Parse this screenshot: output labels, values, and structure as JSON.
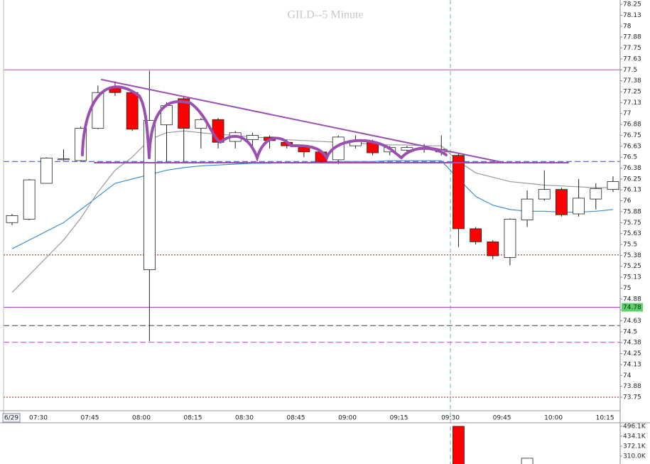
{
  "chart_data": {
    "type": "candlestick",
    "title": "GILD--5 Minute",
    "date_label": "6/29",
    "xtick_labels": [
      "07:30",
      "07:45",
      "08:00",
      "08:15",
      "08:30",
      "08:45",
      "09:00",
      "09:15",
      "09:30",
      "09:45",
      "10:00",
      "10:15"
    ],
    "open": [
      75.75,
      75.79,
      76.2,
      76.47,
      76.46,
      76.83,
      77.29,
      77.24,
      75.21,
      76.87,
      77.17,
      76.83,
      76.93,
      76.68,
      76.7,
      76.73,
      76.67,
      76.61,
      76.56,
      76.47,
      76.63,
      76.67,
      76.56,
      76.58,
      76.59,
      76.56,
      76.52,
      75.68,
      75.53,
      75.35,
      75.78,
      76.02,
      76.13,
      75.85,
      76.02,
      76.13
    ],
    "high": [
      75.85,
      76.25,
      76.5,
      76.59,
      76.85,
      77.32,
      77.37,
      77.26,
      77.49,
      77.13,
      77.19,
      76.95,
      76.95,
      76.8,
      76.78,
      76.75,
      76.7,
      76.63,
      76.58,
      76.75,
      76.75,
      76.7,
      76.63,
      76.63,
      76.65,
      76.75,
      76.55,
      75.7,
      75.55,
      75.8,
      76.12,
      76.35,
      76.15,
      76.25,
      76.2,
      76.28
    ],
    "low": [
      75.72,
      75.78,
      76.2,
      76.46,
      76.45,
      76.82,
      77.2,
      76.8,
      74.39,
      76.45,
      76.45,
      76.6,
      76.6,
      76.6,
      76.6,
      76.6,
      76.6,
      76.5,
      76.44,
      76.42,
      76.6,
      76.52,
      76.52,
      76.55,
      76.55,
      76.52,
      75.47,
      75.5,
      75.33,
      75.26,
      75.7,
      76.0,
      75.82,
      75.82,
      75.9,
      76.1
    ],
    "close": [
      75.83,
      76.24,
      76.49,
      76.48,
      76.83,
      77.24,
      77.24,
      76.82,
      76.92,
      77.09,
      76.83,
      76.93,
      76.67,
      76.78,
      76.75,
      76.69,
      76.63,
      76.56,
      76.45,
      76.73,
      76.69,
      76.55,
      76.61,
      76.61,
      76.61,
      76.59,
      75.68,
      75.53,
      75.37,
      75.79,
      76.02,
      76.13,
      75.84,
      76.03,
      76.14,
      76.22
    ],
    "up_color": "#ffffff",
    "down_color": "#ff0000",
    "series": [
      {
        "color": "#3a8fd8",
        "values": [
          75.45,
          75.55,
          75.65,
          75.75,
          75.9,
          76.05,
          76.2,
          76.25,
          76.3,
          76.35,
          76.38,
          76.4,
          76.41,
          76.42,
          76.43,
          76.43,
          76.44,
          76.44,
          76.44,
          76.45,
          76.45,
          76.45,
          76.46,
          76.46,
          76.46,
          76.46,
          76.25,
          76.05,
          75.95,
          75.9,
          75.88,
          75.88,
          75.87,
          75.87,
          75.88,
          75.9
        ]
      },
      {
        "color": "#999999",
        "values": [
          74.95,
          75.15,
          75.35,
          75.55,
          75.8,
          76.1,
          76.35,
          76.5,
          76.7,
          76.78,
          76.8,
          76.78,
          76.76,
          76.75,
          76.73,
          76.72,
          76.7,
          76.69,
          76.68,
          76.67,
          76.66,
          76.65,
          76.64,
          76.64,
          76.63,
          76.63,
          76.45,
          76.32,
          76.27,
          76.22,
          76.2,
          76.18,
          76.17,
          76.16,
          76.15,
          76.15
        ]
      }
    ],
    "levels": [
      {
        "value": 77.5,
        "color": "#c060c0",
        "style": "solid"
      },
      {
        "value": 76.45,
        "color": "#4060d0",
        "style": "dashed"
      },
      {
        "value": 75.38,
        "color": "#c04040",
        "style": "dotted"
      },
      {
        "value": 74.78,
        "color": "#b050c0",
        "style": "solid",
        "label": true
      },
      {
        "value": 74.57,
        "color": "#666666",
        "style": "dashed"
      },
      {
        "value": 74.38,
        "color": "#e060e0",
        "style": "dashed"
      },
      {
        "value": 73.75,
        "color": "#c04040",
        "style": "dotted"
      }
    ],
    "ylim": [
      73.62,
      78.3
    ],
    "yticks": [
      78.25,
      {
        "value": 78.125,
        "label": "78.13"
      },
      78,
      {
        "value": 77.875,
        "label": "77.88"
      },
      77.75,
      {
        "value": 77.625,
        "label": "77.63"
      },
      77.5,
      {
        "value": 77.375,
        "label": "77.38"
      },
      77.25,
      {
        "value": 77.125,
        "label": "77.13"
      },
      77,
      {
        "value": 76.875,
        "label": "76.88"
      },
      76.75,
      {
        "value": 76.625,
        "label": "76.63"
      },
      76.5,
      {
        "value": 76.375,
        "label": "76.38"
      },
      76.25,
      {
        "value": 76.125,
        "label": "76.13"
      },
      76,
      {
        "value": 75.875,
        "label": "75.88"
      },
      75.75,
      {
        "value": 75.625,
        "label": "75.63"
      },
      75.5,
      {
        "value": 75.375,
        "label": "75.38"
      },
      75.25,
      {
        "value": 75.125,
        "label": "75.13"
      },
      75,
      {
        "value": 74.875,
        "label": "74.88"
      },
      74.75,
      {
        "value": 74.625,
        "label": "74.63"
      },
      74.5,
      {
        "value": 74.375,
        "label": "74.38"
      },
      74.25,
      {
        "value": 74.125,
        "label": "74.13"
      },
      74,
      {
        "value": 73.875,
        "label": "73.88"
      },
      73.75
    ],
    "volume": {
      "values": [
        null,
        null,
        null,
        null,
        null,
        null,
        null,
        null,
        null,
        null,
        null,
        null,
        null,
        null,
        null,
        null,
        null,
        null,
        null,
        null,
        null,
        null,
        null,
        null,
        null,
        null,
        496,
        null,
        null,
        null,
        297,
        null,
        null,
        null,
        null,
        null
      ],
      "ylim": [
        261,
        518
      ],
      "yticks": [
        {
          "value": 496.1,
          "label": "496.1K"
        },
        {
          "value": 434.1,
          "label": "434.1K"
        },
        {
          "value": 372.1,
          "label": "372.1K"
        },
        {
          "value": 310.0,
          "label": "310.0K"
        }
      ]
    }
  }
}
